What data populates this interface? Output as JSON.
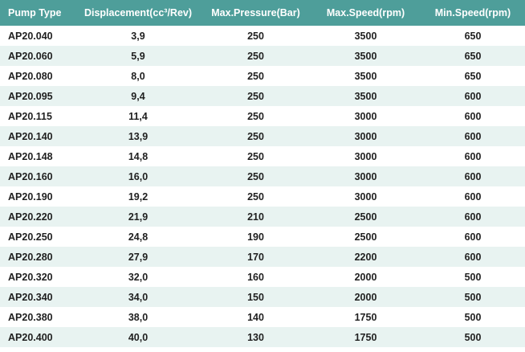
{
  "table": {
    "headers": [
      "Pump Type",
      "Displacement(cc³/Rev)",
      "Max.Pressure(Bar)",
      "Max.Speed(rpm)",
      "Min.Speed(rpm)"
    ],
    "rows": [
      [
        "AP20.040",
        "3,9",
        "250",
        "3500",
        "650"
      ],
      [
        "AP20.060",
        "5,9",
        "250",
        "3500",
        "650"
      ],
      [
        "AP20.080",
        "8,0",
        "250",
        "3500",
        "650"
      ],
      [
        "AP20.095",
        "9,4",
        "250",
        "3500",
        "600"
      ],
      [
        "AP20.115",
        "11,4",
        "250",
        "3000",
        "600"
      ],
      [
        "AP20.140",
        "13,9",
        "250",
        "3000",
        "600"
      ],
      [
        "AP20.148",
        "14,8",
        "250",
        "3000",
        "600"
      ],
      [
        "AP20.160",
        "16,0",
        "250",
        "3000",
        "600"
      ],
      [
        "AP20.190",
        "19,2",
        "250",
        "3000",
        "600"
      ],
      [
        "AP20.220",
        "21,9",
        "210",
        "2500",
        "600"
      ],
      [
        "AP20.250",
        "24,8",
        "190",
        "2500",
        "600"
      ],
      [
        "AP20.280",
        "27,9",
        "170",
        "2200",
        "600"
      ],
      [
        "AP20.320",
        "32,0",
        "160",
        "2000",
        "500"
      ],
      [
        "AP20.340",
        "34,0",
        "150",
        "2000",
        "500"
      ],
      [
        "AP20.380",
        "38,0",
        "140",
        "1750",
        "500"
      ],
      [
        "AP20.400",
        "40,0",
        "130",
        "1750",
        "500"
      ]
    ]
  },
  "colors": {
    "header_bg": "#4e9e9a",
    "stripe_bg": "#e8f3f1"
  }
}
